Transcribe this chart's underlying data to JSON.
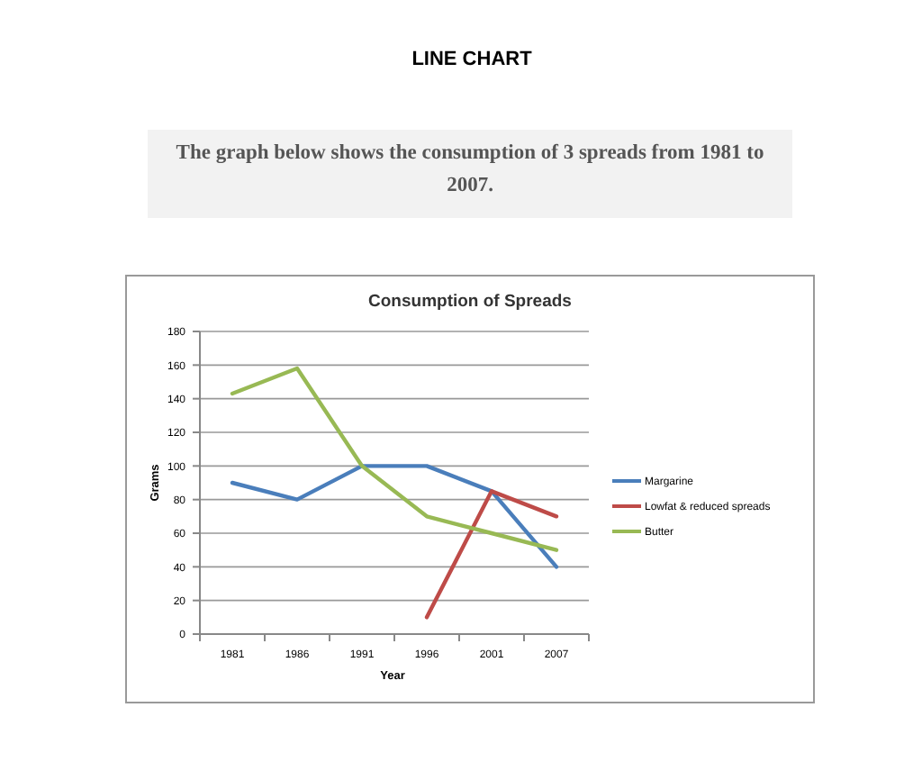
{
  "chart_data": {
    "type": "line",
    "title": "Consumption of Spreads",
    "xlabel": "Year",
    "ylabel": "Grams",
    "annotations": [
      "LINE CHART",
      "The graph below shows the consumption of 3 spreads from 1981 to 2007."
    ],
    "categories": [
      "1981",
      "1986",
      "1991",
      "1996",
      "2001",
      "2007"
    ],
    "series": [
      {
        "name": "Margarine",
        "color": "#4a7ebb",
        "values": [
          90,
          80,
          100,
          100,
          85,
          40
        ]
      },
      {
        "name": "Lowfat & reduced spreads",
        "color": "#be4b48",
        "values": [
          null,
          null,
          null,
          10,
          85,
          70
        ]
      },
      {
        "name": "Butter",
        "color": "#98b954",
        "values": [
          143,
          158,
          100,
          70,
          60,
          50
        ]
      }
    ],
    "ylim": [
      0,
      180
    ],
    "yticks": [
      0,
      20,
      40,
      60,
      80,
      100,
      120,
      140,
      160,
      180
    ],
    "grid": "y",
    "legend": "right",
    "marker": "none",
    "line_style": "solid"
  }
}
